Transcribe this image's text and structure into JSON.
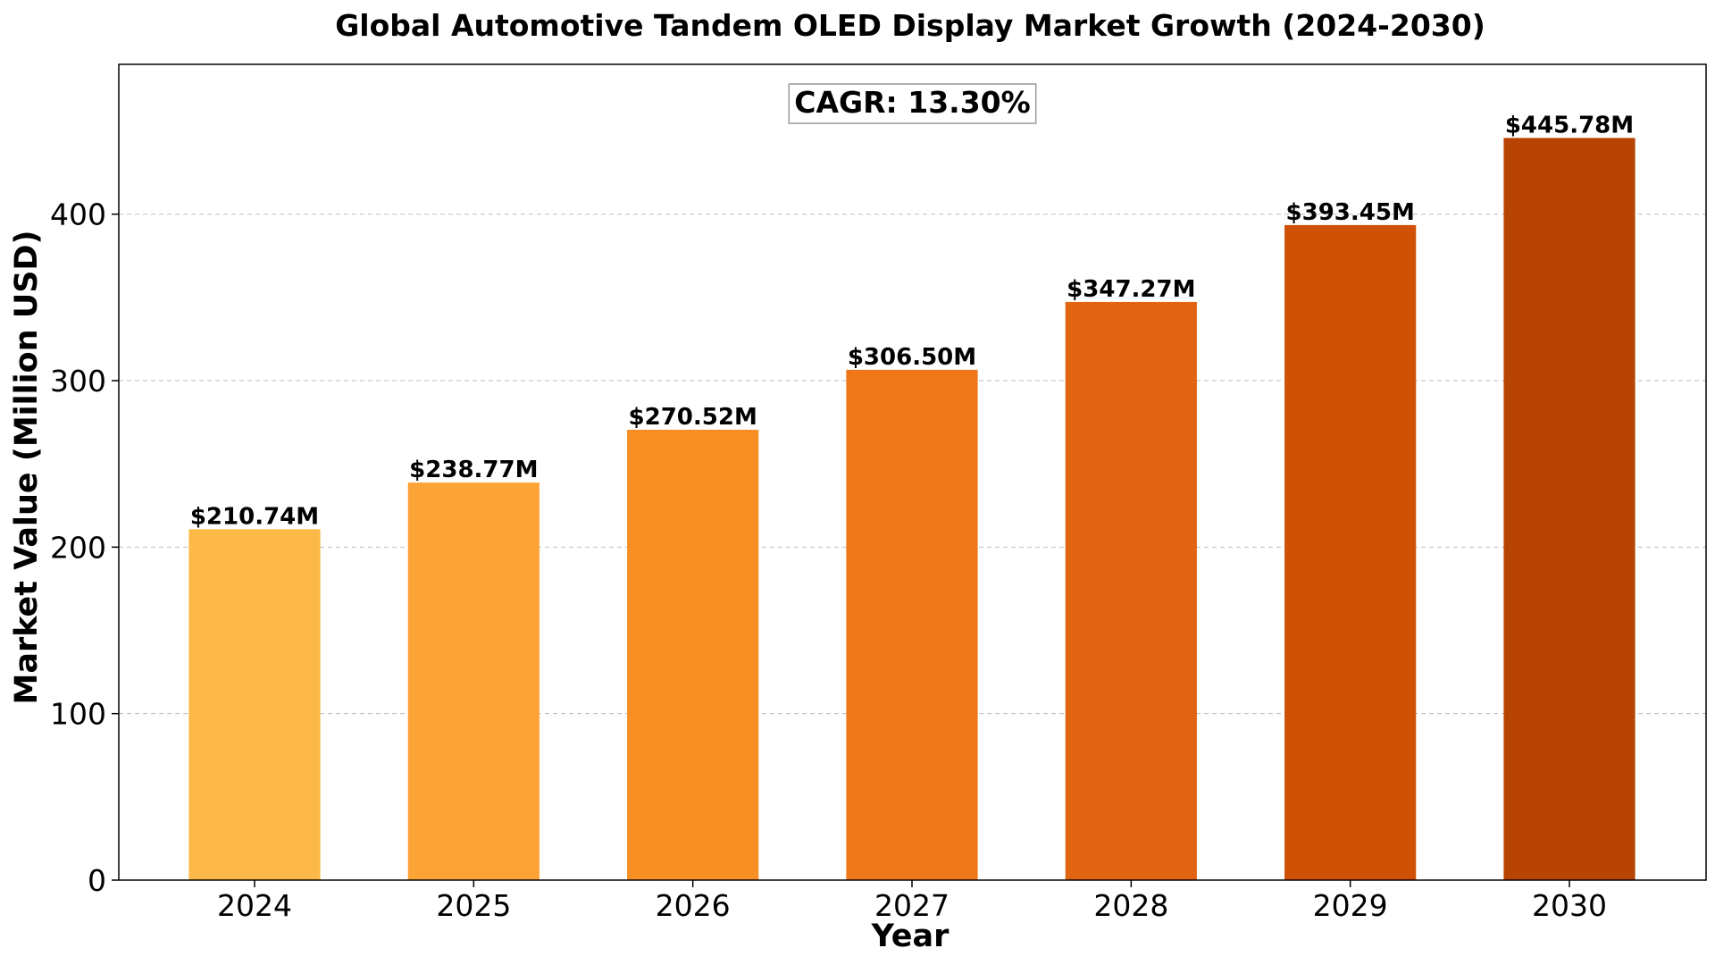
{
  "chart_data": {
    "type": "bar",
    "title": "Global Automotive Tandem OLED Display Market Growth (2024-2030)",
    "xlabel": "Year",
    "ylabel": "Market Value (Million USD)",
    "categories": [
      "2024",
      "2025",
      "2026",
      "2027",
      "2028",
      "2029",
      "2030"
    ],
    "values": [
      210.74,
      238.77,
      270.52,
      306.5,
      347.27,
      393.45,
      445.78
    ],
    "value_labels": [
      "$210.74M",
      "$238.77M",
      "$270.52M",
      "$306.50M",
      "$347.27M",
      "$393.45M",
      "$445.78M"
    ],
    "colors": [
      "#FDB948",
      "#FCA335",
      "#F78F24",
      "#EF771A",
      "#E06411",
      "#D05005",
      "#B84404"
    ],
    "ylim": [
      0,
      490
    ],
    "yticks": [
      0,
      100,
      200,
      300,
      400
    ],
    "grid": "y-dashed",
    "annotation": "CAGR: 13.30%"
  }
}
